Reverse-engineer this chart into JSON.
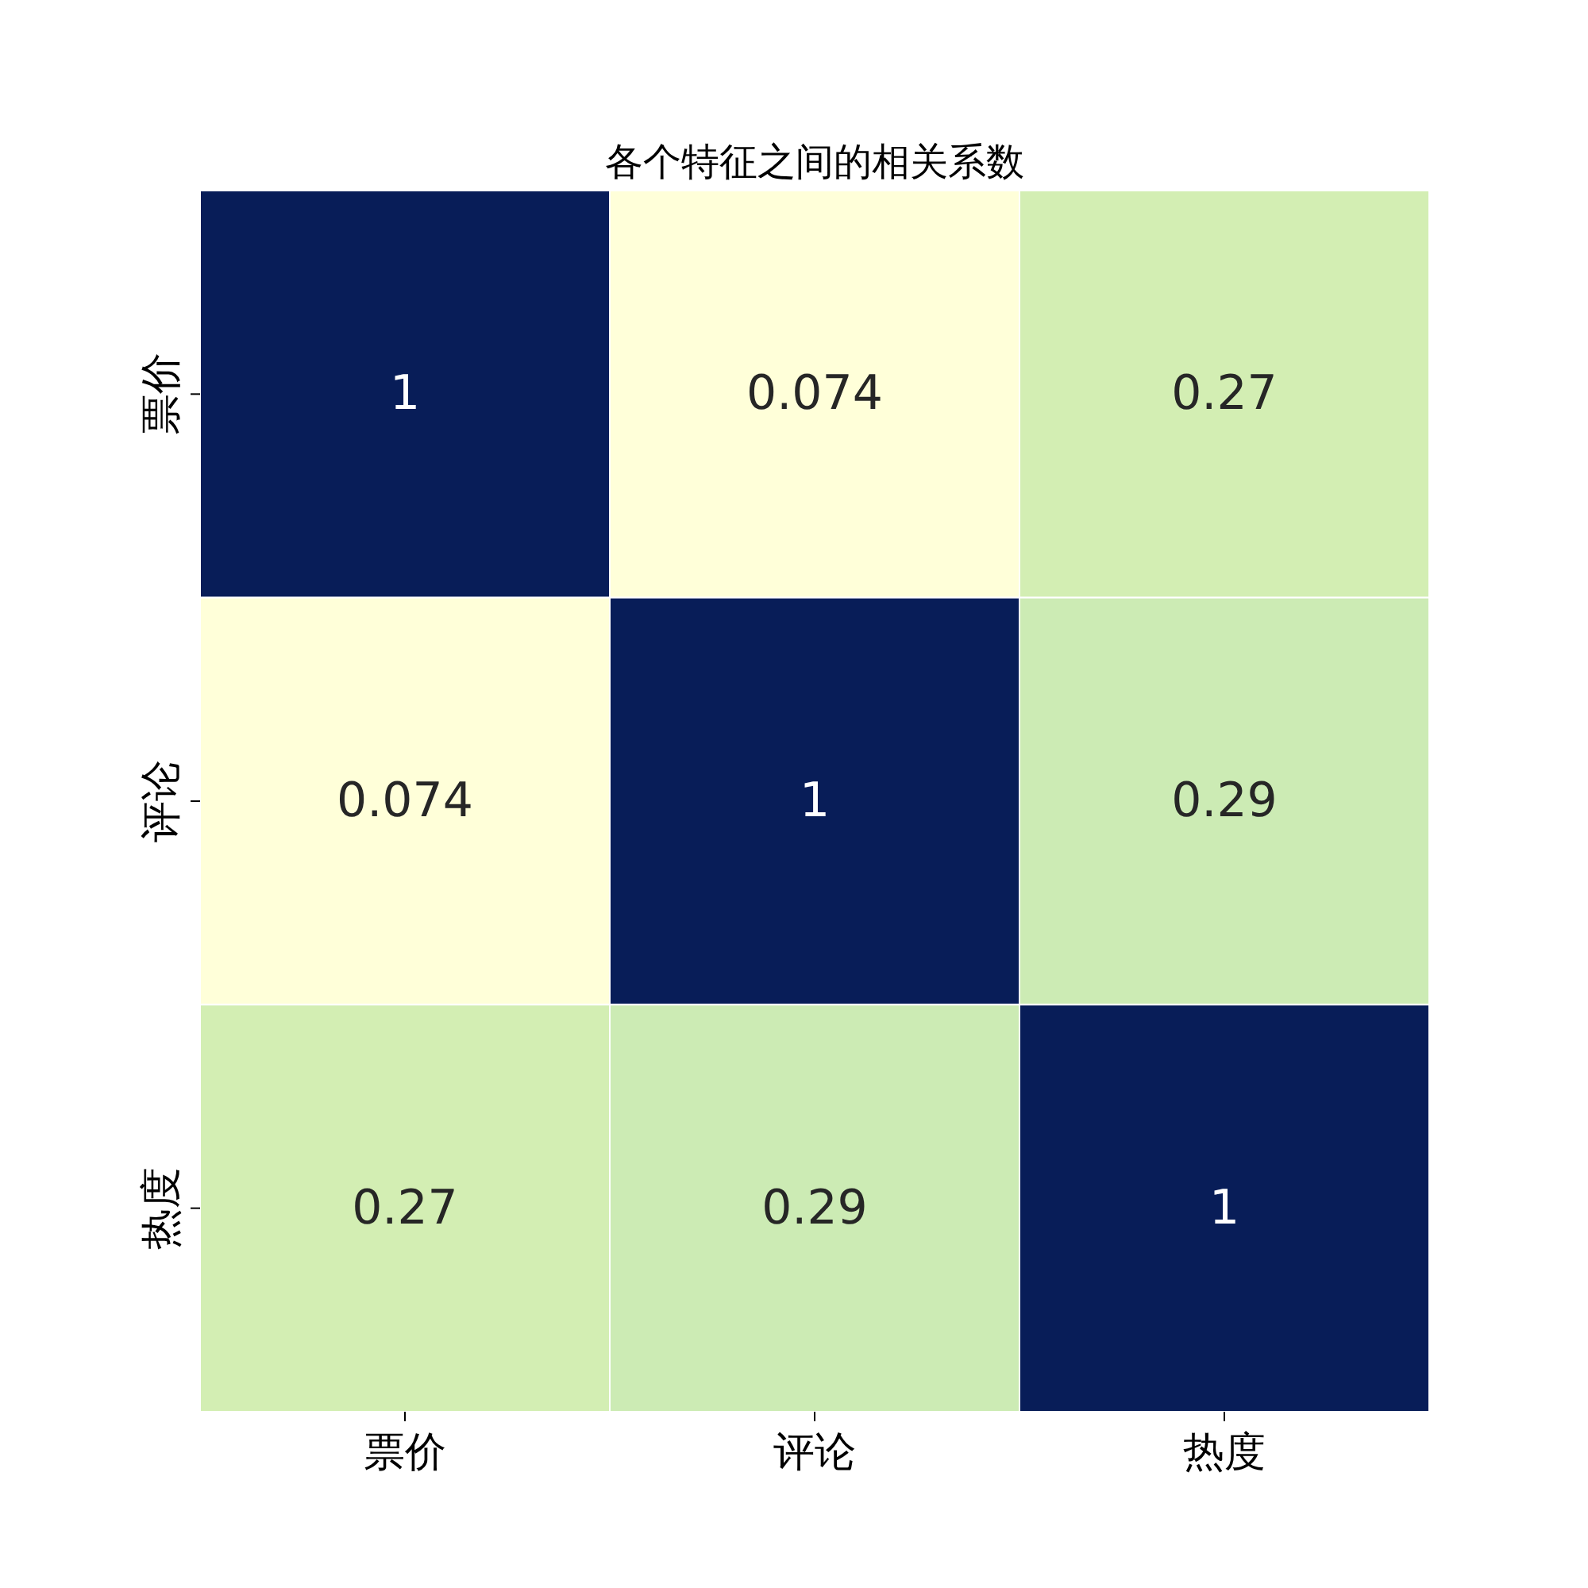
{
  "chart_data": {
    "type": "heatmap",
    "title": "各个特征之间的相关系数",
    "categories": [
      "票价",
      "评论",
      "热度"
    ],
    "y_categories": [
      "票价",
      "评论",
      "热度"
    ],
    "cells": [
      [
        1,
        0.074,
        0.27
      ],
      [
        0.074,
        1,
        0.29
      ],
      [
        0.27,
        0.29,
        1
      ]
    ],
    "data_labels": true
  }
}
